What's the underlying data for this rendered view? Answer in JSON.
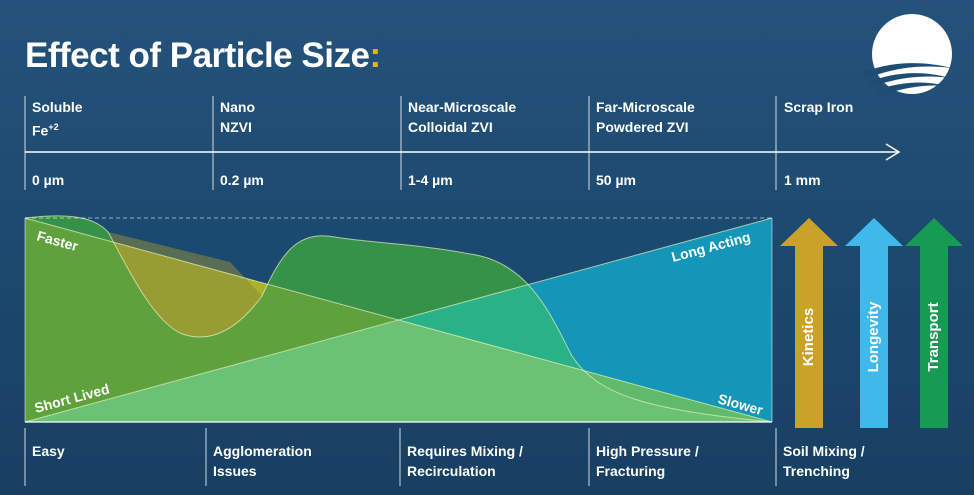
{
  "title": {
    "text": "Effect of Particle Size",
    "colon": ":",
    "accent_color": "#e2b42a"
  },
  "logo": {
    "icon": "swoosh-globe-logo"
  },
  "columns": [
    {
      "line1": "Soluble",
      "line2": "Fe",
      "sup": "+2",
      "tick": "0 µm",
      "bottom1": "Easy",
      "bottom2": ""
    },
    {
      "line1": "Nano",
      "line2": "NZVI",
      "sup": "",
      "tick": "0.2 µm",
      "bottom1": "Agglomeration",
      "bottom2": "Issues"
    },
    {
      "line1": "Near-Microscale",
      "line2": "Colloidal ZVI",
      "sup": "",
      "tick": "1-4 µm",
      "bottom1": "Requires Mixing /",
      "bottom2": "Recirculation"
    },
    {
      "line1": "Far-Microscale",
      "line2": "Powdered ZVI",
      "sup": "",
      "tick": "50 µm",
      "bottom1": "High Pressure /",
      "bottom2": "Fracturing"
    },
    {
      "line1": "Scrap Iron",
      "line2": "",
      "sup": "",
      "tick": "1 mm",
      "bottom1": "Soil Mixing /",
      "bottom2": "Trenching"
    }
  ],
  "diagram": {
    "labels": {
      "faster": "Faster",
      "short_lived": "Short Lived",
      "long_acting": "Long Acting",
      "slower": "Slower"
    },
    "colors": {
      "kinetics_area": "#a9b328",
      "transport_area": "#3b9a45",
      "longevity_area": "#1496b8",
      "mixed_light_green": "#6cc274",
      "mixed_teal": "#27b592"
    }
  },
  "arrows": [
    {
      "label": "Kinetics",
      "color": "#c9a227"
    },
    {
      "label": "Longevity",
      "color": "#3fb8ea"
    },
    {
      "label": "Transport",
      "color": "#179b52"
    }
  ]
}
